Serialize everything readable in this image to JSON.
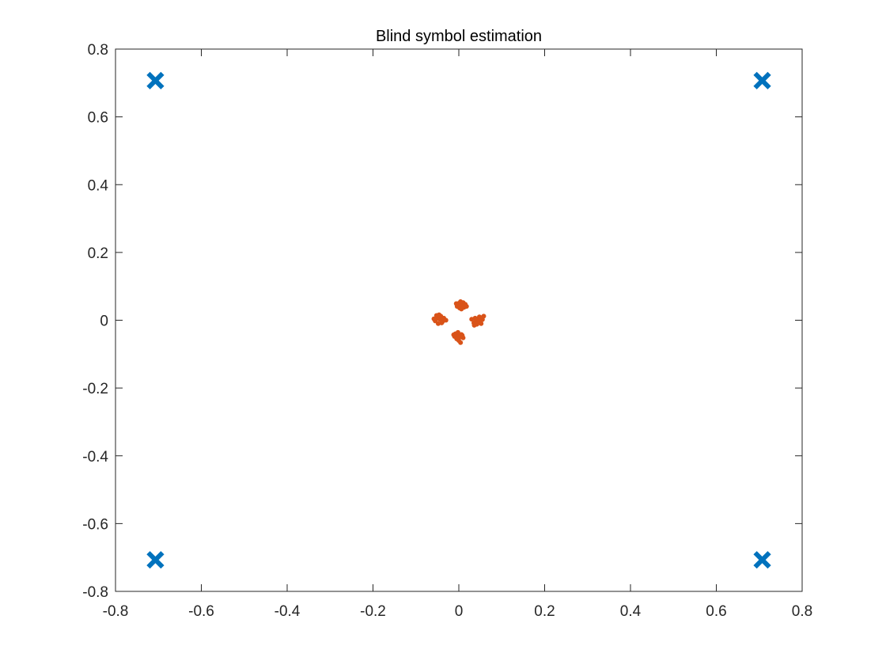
{
  "chart_data": {
    "type": "scatter",
    "title": "Blind symbol estimation",
    "xlabel": "",
    "ylabel": "",
    "xlim": [
      -0.8,
      0.8
    ],
    "ylim": [
      -0.8,
      0.8
    ],
    "x_ticks": [
      -0.8,
      -0.6,
      -0.4,
      -0.2,
      0,
      0.2,
      0.4,
      0.6,
      0.8
    ],
    "y_ticks": [
      -0.8,
      -0.6,
      -0.4,
      -0.2,
      0,
      0.2,
      0.4,
      0.6,
      0.8
    ],
    "x_tick_labels": [
      "-0.8",
      "-0.6",
      "-0.4",
      "-0.2",
      "0",
      "0.2",
      "0.4",
      "0.6",
      "0.8"
    ],
    "y_tick_labels": [
      "-0.8",
      "-0.6",
      "-0.4",
      "-0.2",
      "0",
      "0.2",
      "0.4",
      "0.6",
      "0.8"
    ],
    "grid": false,
    "legend": "none",
    "series": [
      {
        "marker": "x",
        "color": "#0072BD",
        "points": [
          [
            -0.707,
            0.707
          ],
          [
            0.707,
            0.707
          ],
          [
            -0.707,
            -0.707
          ],
          [
            0.707,
            -0.707
          ]
        ]
      },
      {
        "marker": "dot",
        "color": "#D95319",
        "points": [
          [
            0.005,
            0.045
          ],
          [
            0.0,
            0.05
          ],
          [
            0.01,
            0.052
          ],
          [
            -0.004,
            0.041
          ],
          [
            0.012,
            0.038
          ],
          [
            0.002,
            0.036
          ],
          [
            0.015,
            0.047
          ],
          [
            -0.006,
            0.049
          ],
          [
            0.008,
            0.043
          ],
          [
            0.004,
            0.055
          ],
          [
            0.018,
            0.041
          ],
          [
            0.006,
            0.033
          ],
          [
            -0.045,
            0.003
          ],
          [
            -0.05,
            0.008
          ],
          [
            -0.038,
            -0.004
          ],
          [
            -0.055,
            -0.002
          ],
          [
            -0.042,
            0.012
          ],
          [
            -0.048,
            -0.01
          ],
          [
            -0.035,
            0.006
          ],
          [
            -0.052,
            0.014
          ],
          [
            -0.04,
            -0.008
          ],
          [
            -0.058,
            0.004
          ],
          [
            -0.03,
            0.0
          ],
          [
            -0.046,
            0.016
          ],
          [
            0.04,
            -0.003
          ],
          [
            0.045,
            0.005
          ],
          [
            0.035,
            -0.008
          ],
          [
            0.05,
            -0.005
          ],
          [
            0.038,
            0.006
          ],
          [
            0.055,
            0.002
          ],
          [
            0.042,
            -0.012
          ],
          [
            0.03,
            0.003
          ],
          [
            0.048,
            0.01
          ],
          [
            0.058,
            0.012
          ],
          [
            0.036,
            -0.015
          ],
          [
            0.052,
            -0.01
          ],
          [
            -0.003,
            -0.045
          ],
          [
            0.002,
            -0.05
          ],
          [
            -0.008,
            -0.04
          ],
          [
            0.006,
            -0.042
          ],
          [
            -0.005,
            -0.055
          ],
          [
            0.0,
            -0.06
          ],
          [
            0.004,
            -0.066
          ],
          [
            -0.01,
            -0.048
          ],
          [
            0.01,
            -0.052
          ],
          [
            -0.002,
            -0.036
          ],
          [
            0.008,
            -0.045
          ],
          [
            -0.012,
            -0.043
          ]
        ]
      }
    ]
  }
}
